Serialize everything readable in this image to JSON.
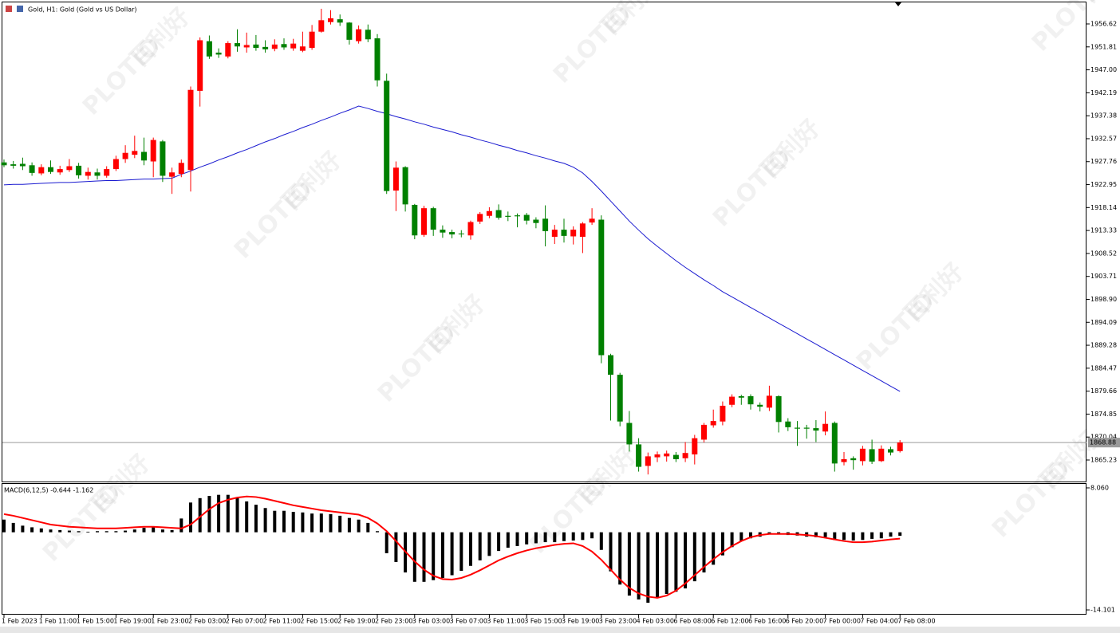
{
  "chart_data": [
    {
      "type": "candlestick",
      "title": "Gold, H1:  Gold (Gold vs US Dollar)",
      "watermark": [
        "PLOTIO",
        "百利好"
      ],
      "categories": [
        "1 Feb 2023",
        null,
        null,
        null,
        "1 Feb 11:00",
        null,
        null,
        null,
        "1 Feb 15:00",
        null,
        null,
        null,
        "1 Feb 19:00",
        null,
        null,
        null,
        "1 Feb 23:00",
        null,
        null,
        null,
        "2 Feb 03:00",
        null,
        null,
        null,
        "2 Feb 07:00",
        null,
        null,
        null,
        "2 Feb 11:00",
        null,
        null,
        null,
        "2 Feb 15:00",
        null,
        null,
        null,
        "2 Feb 19:00",
        null,
        null,
        null,
        "2 Feb 23:00",
        null,
        null,
        null,
        "3 Feb 03:00",
        null,
        null,
        null,
        "3 Feb 07:00",
        null,
        null,
        null,
        "3 Feb 11:00",
        null,
        null,
        null,
        "3 Feb 15:00",
        null,
        null,
        null,
        "3 Feb 19:00",
        null,
        null,
        null,
        "3 Feb 23:00",
        null,
        null,
        null,
        "4 Feb 03:00",
        null,
        null,
        null,
        "6 Feb 08:00",
        null,
        null,
        null,
        "6 Feb 12:00",
        null,
        null,
        null,
        "6 Feb 16:00",
        null,
        null,
        null,
        "6 Feb 20:00",
        null,
        null,
        null,
        "7 Feb 00:00",
        null,
        null,
        null,
        "7 Feb 04:00",
        null,
        null,
        null,
        "7 Feb 08:00"
      ],
      "open": [
        1927.6,
        1927.2,
        1927.3,
        1927.0,
        1925.3,
        1926.6,
        1925.5,
        1926.0,
        1926.9,
        1924.8,
        1925.5,
        1924.8,
        1926.2,
        1928.3,
        1929.2,
        1929.8,
        1927.8,
        1932.0,
        1924.6,
        1925.2,
        1926.0,
        1942.6,
        1953.0,
        1950.6,
        1949.8,
        1952.6,
        1951.7,
        1952.3,
        1951.8,
        1951.4,
        1952.4,
        1951.5,
        1951.0,
        1951.6,
        1955.0,
        1957.0,
        1957.6,
        1956.9,
        1953.0,
        1955.4,
        1953.6,
        1944.7,
        1921.7,
        1926.6,
        1918.7,
        1912.4,
        1918.0,
        1913.5,
        1913.0,
        1912.7,
        1912.3,
        1915.2,
        1916.4,
        1917.6,
        1916.4,
        1916.5,
        1916.6,
        1915.6,
        1915.8,
        1912.0,
        1913.5,
        1912.1,
        1912.0,
        1915.0,
        1915.6,
        1887.2,
        1883.1,
        1873.0,
        1868.5,
        1864.0,
        1865.8,
        1866.0,
        1866.3,
        1865.6,
        1866.4,
        1869.5,
        1872.5,
        1873.3,
        1876.8,
        1878.6,
        1878.6,
        1876.8,
        1876.2,
        1878.6,
        1873.3,
        1872.0,
        1872.0,
        1871.9,
        1871.2,
        1873.0,
        1864.8,
        1865.6,
        1865.0,
        1867.5,
        1865.0,
        1867.5,
        1867.1
      ],
      "high": [
        1928.2,
        1927.9,
        1928.6,
        1927.6,
        1927.2,
        1928.0,
        1926.9,
        1928.3,
        1927.5,
        1926.5,
        1926.3,
        1926.8,
        1929.0,
        1931.2,
        1933.2,
        1932.8,
        1932.8,
        1932.3,
        1926.5,
        1928.2,
        1943.5,
        1953.8,
        1954.2,
        1951.5,
        1953.0,
        1955.5,
        1954.8,
        1954.3,
        1953.2,
        1953.4,
        1953.6,
        1953.5,
        1955.0,
        1956.4,
        1959.8,
        1959.5,
        1958.6,
        1957.0,
        1956.3,
        1956.5,
        1954.5,
        1946.2,
        1927.8,
        1926.8,
        1918.9,
        1918.5,
        1918.3,
        1914.4,
        1913.5,
        1913.4,
        1915.4,
        1917.2,
        1918.2,
        1918.8,
        1917.3,
        1916.9,
        1917.0,
        1916.1,
        1918.6,
        1914.5,
        1915.8,
        1914.2,
        1915.1,
        1918.0,
        1916.5,
        1887.5,
        1883.5,
        1875.5,
        1869.8,
        1866.8,
        1867.0,
        1867.2,
        1866.9,
        1869.0,
        1870.5,
        1873.0,
        1875.8,
        1877.5,
        1879.0,
        1878.9,
        1879.0,
        1877.3,
        1880.8,
        1878.8,
        1874.0,
        1873.4,
        1872.6,
        1873.6,
        1875.4,
        1873.3,
        1866.9,
        1866.0,
        1868.2,
        1869.5,
        1868.3,
        1868.0,
        1869.4
      ],
      "low": [
        1926.6,
        1926.3,
        1926.0,
        1924.8,
        1924.9,
        1925.2,
        1925.0,
        1925.6,
        1924.2,
        1924.0,
        1924.0,
        1924.4,
        1925.8,
        1927.5,
        1928.5,
        1927.0,
        1924.5,
        1923.5,
        1921.0,
        1924.5,
        1921.5,
        1939.3,
        1949.3,
        1949.5,
        1949.4,
        1950.8,
        1950.6,
        1951.0,
        1950.6,
        1950.9,
        1951.2,
        1951.0,
        1950.7,
        1951.2,
        1954.8,
        1956.5,
        1956.2,
        1952.3,
        1952.5,
        1952.8,
        1943.5,
        1921.0,
        1917.4,
        1917.3,
        1911.5,
        1912.0,
        1912.2,
        1911.8,
        1911.7,
        1911.9,
        1911.4,
        1914.7,
        1915.9,
        1915.6,
        1915.3,
        1914.0,
        1914.6,
        1913.8,
        1910.0,
        1910.5,
        1910.8,
        1910.4,
        1908.6,
        1914.5,
        1885.5,
        1873.5,
        1872.3,
        1867.0,
        1862.8,
        1862.2,
        1864.8,
        1864.9,
        1864.8,
        1864.8,
        1864.3,
        1868.9,
        1872.0,
        1872.5,
        1876.3,
        1876.8,
        1875.8,
        1875.4,
        1875.5,
        1871.0,
        1871.3,
        1868.2,
        1869.7,
        1869.0,
        1870.4,
        1862.8,
        1864.1,
        1863.2,
        1864.1,
        1864.4,
        1864.8,
        1866.2,
        1866.8
      ],
      "close": [
        1927.0,
        1926.9,
        1926.8,
        1925.4,
        1926.6,
        1925.6,
        1926.2,
        1926.8,
        1924.9,
        1925.6,
        1924.8,
        1926.2,
        1928.3,
        1929.6,
        1930.0,
        1928.0,
        1932.3,
        1924.8,
        1925.5,
        1927.5,
        1942.8,
        1953.2,
        1949.8,
        1950.2,
        1952.6,
        1951.9,
        1952.2,
        1951.6,
        1951.3,
        1952.3,
        1951.7,
        1952.5,
        1951.9,
        1955.0,
        1957.4,
        1957.8,
        1956.9,
        1953.3,
        1955.5,
        1953.4,
        1944.8,
        1921.6,
        1926.5,
        1918.8,
        1912.3,
        1918.0,
        1913.5,
        1912.9,
        1912.5,
        1912.6,
        1915.1,
        1916.8,
        1917.4,
        1916.0,
        1916.2,
        1916.3,
        1915.4,
        1914.9,
        1913.2,
        1913.5,
        1912.2,
        1913.5,
        1914.8,
        1915.8,
        1887.2,
        1883.1,
        1873.3,
        1868.5,
        1863.8,
        1866.0,
        1866.4,
        1866.6,
        1865.4,
        1866.7,
        1869.8,
        1872.6,
        1873.4,
        1876.6,
        1878.5,
        1878.3,
        1876.9,
        1876.4,
        1878.7,
        1873.2,
        1872.1,
        1871.8,
        1871.8,
        1871.4,
        1872.8,
        1864.5,
        1865.4,
        1865.2,
        1867.6,
        1864.9,
        1867.6,
        1866.8,
        1868.9
      ],
      "up_color": "#ff0000",
      "down_color": "#008000",
      "series": [
        {
          "color": "#1a1ad0",
          "values": [
            1922.9,
            1923.0,
            1923.0,
            1923.1,
            1923.2,
            1923.3,
            1923.4,
            1923.4,
            1923.5,
            1923.6,
            1923.7,
            1923.8,
            1923.8,
            1923.9,
            1924.0,
            1924.1,
            1924.1,
            1924.2,
            1924.3,
            1925.1,
            1925.8,
            1926.6,
            1927.3,
            1928.1,
            1928.8,
            1929.6,
            1930.3,
            1931.1,
            1931.9,
            1932.6,
            1933.4,
            1934.1,
            1934.9,
            1935.6,
            1936.4,
            1937.1,
            1937.9,
            1938.6,
            1939.4,
            1938.9,
            1938.3,
            1937.8,
            1937.2,
            1936.7,
            1936.1,
            1935.6,
            1935.0,
            1934.5,
            1934.0,
            1933.4,
            1932.9,
            1932.3,
            1931.8,
            1931.2,
            1930.7,
            1930.1,
            1929.6,
            1929.0,
            1928.5,
            1927.9,
            1927.4,
            1926.6,
            1925.4,
            1923.6,
            1921.6,
            1919.5,
            1917.4,
            1915.3,
            1913.4,
            1911.6,
            1910.0,
            1908.5,
            1907.0,
            1905.6,
            1904.3,
            1903.0,
            1901.8,
            1900.5,
            1899.4,
            1898.3,
            1897.2,
            1896.1,
            1895.0,
            1893.9,
            1892.8,
            1891.7,
            1890.6,
            1889.5,
            1888.4,
            1887.3,
            1886.2,
            1885.1,
            1884.0,
            1882.9,
            1881.8,
            1880.7,
            1879.6
          ]
        }
      ],
      "last_price": 1868.88,
      "last_price_label": "1868.88",
      "ylim": [
        1860.72,
        1961.3
      ],
      "yticks": [
        1956.62,
        1951.81,
        {
          "value": 1947,
          "label": "1947.00"
        },
        1942.19,
        1937.38,
        1932.57,
        1927.76,
        1922.95,
        1918.14,
        1913.33,
        1908.52,
        1903.71,
        {
          "value": 1898.9,
          "label": "1898.90"
        },
        1894.09,
        1889.28,
        1884.47,
        1879.66,
        1874.85,
        1870.04,
        1865.23
      ]
    },
    {
      "type": "macd",
      "title": "MACD(6,12,5) -0.644 -1.162",
      "values": [
        2.3,
        1.7,
        1.2,
        0.9,
        0.7,
        0.5,
        0.4,
        0.3,
        0.2,
        0.1,
        0.2,
        0.2,
        0.2,
        0.3,
        0.5,
        0.8,
        0.9,
        0.5,
        0.4,
        2.5,
        5.4,
        6.2,
        6.6,
        6.8,
        6.8,
        6.3,
        5.6,
        5.0,
        4.4,
        3.9,
        3.9,
        3.7,
        3.6,
        3.4,
        3.4,
        3.3,
        3.0,
        2.6,
        2.3,
        1.7,
        0.2,
        -3.8,
        -5.4,
        -7.3,
        -9.0,
        -9.0,
        -8.7,
        -8.3,
        -7.8,
        -7.0,
        -6.1,
        -5.1,
        -4.3,
        -3.4,
        -2.8,
        -2.5,
        -2.2,
        -2.0,
        -1.8,
        -1.8,
        -1.6,
        -1.5,
        -1.4,
        -1.1,
        -3.2,
        -7.1,
        -9.5,
        -11.5,
        -12.2,
        -12.8,
        -11.9,
        -11.2,
        -10.8,
        -10.2,
        -8.9,
        -7.3,
        -5.9,
        -4.2,
        -2.7,
        -1.6,
        -1.1,
        -0.8,
        -0.3,
        -0.3,
        -0.5,
        -0.6,
        -0.8,
        -0.9,
        -0.9,
        -1.4,
        -1.4,
        -1.5,
        -1.4,
        -1.2,
        -1.1,
        -0.8,
        -0.644
      ],
      "color": "#000000",
      "signal": [
        3.3,
        3.0,
        2.6,
        2.2,
        1.8,
        1.4,
        1.2,
        1.0,
        0.9,
        0.8,
        0.7,
        0.7,
        0.7,
        0.8,
        0.9,
        1.0,
        1.0,
        0.9,
        0.8,
        0.7,
        1.4,
        2.8,
        4.2,
        5.3,
        5.9,
        6.3,
        6.5,
        6.4,
        6.1,
        5.7,
        5.3,
        4.9,
        4.6,
        4.3,
        4.0,
        3.8,
        3.6,
        3.4,
        3.2,
        2.6,
        1.6,
        0.2,
        -1.6,
        -3.5,
        -5.3,
        -6.8,
        -7.9,
        -8.5,
        -8.6,
        -8.3,
        -7.7,
        -6.9,
        -6.0,
        -5.1,
        -4.4,
        -3.8,
        -3.3,
        -2.9,
        -2.6,
        -2.3,
        -2.1,
        -2.0,
        -2.5,
        -3.5,
        -5.0,
        -6.8,
        -8.6,
        -10.1,
        -11.1,
        -11.7,
        -11.9,
        -11.5,
        -10.6,
        -9.3,
        -7.8,
        -6.3,
        -4.9,
        -3.6,
        -2.5,
        -1.6,
        -0.9,
        -0.5,
        -0.3,
        -0.3,
        -0.3,
        -0.4,
        -0.5,
        -0.7,
        -1.0,
        -1.3,
        -1.6,
        -1.8,
        -1.8,
        -1.7,
        -1.5,
        -1.3,
        -1.162
      ],
      "signal_color": "#ff0000",
      "ylim": [
        -14.82,
        8.78
      ],
      "yticks": [
        {
          "value": 8.06,
          "label": "8.060"
        },
        -14.101
      ]
    }
  ]
}
